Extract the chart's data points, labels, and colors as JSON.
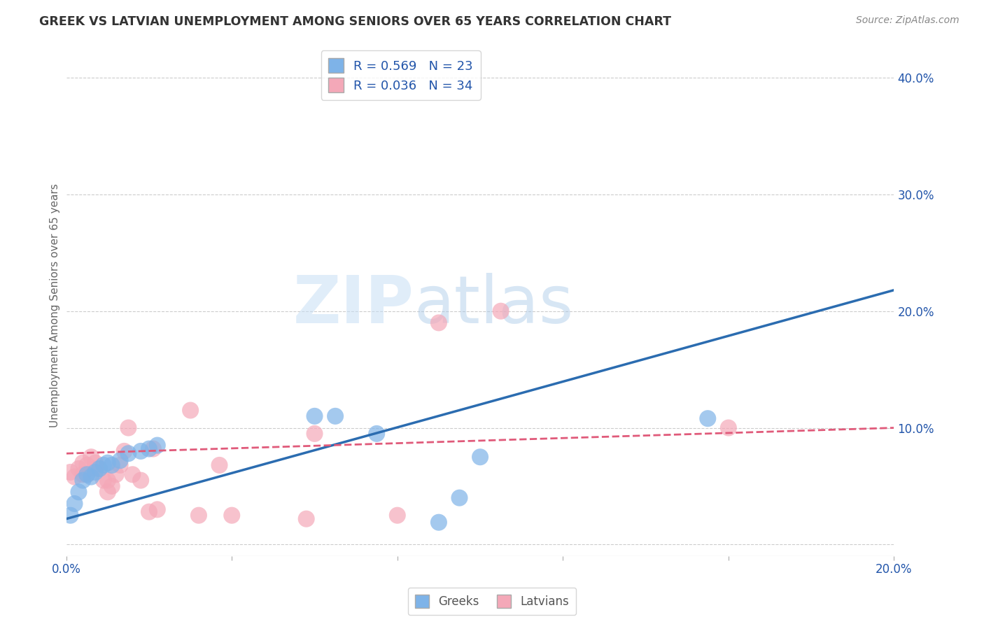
{
  "title": "GREEK VS LATVIAN UNEMPLOYMENT AMONG SENIORS OVER 65 YEARS CORRELATION CHART",
  "source": "Source: ZipAtlas.com",
  "ylabel": "Unemployment Among Seniors over 65 years",
  "x_min": 0.0,
  "x_max": 0.2,
  "y_min": -0.01,
  "y_max": 0.42,
  "x_ticks": [
    0.0,
    0.04,
    0.08,
    0.12,
    0.16,
    0.2
  ],
  "x_tick_labels": [
    "0.0%",
    "",
    "",
    "",
    "",
    "20.0%"
  ],
  "y_ticks": [
    0.0,
    0.1,
    0.2,
    0.3,
    0.4
  ],
  "y_tick_labels_right": [
    "",
    "10.0%",
    "20.0%",
    "30.0%",
    "40.0%"
  ],
  "greeks_R": 0.569,
  "greeks_N": 23,
  "latvians_R": 0.036,
  "latvians_N": 34,
  "greeks_color": "#7EB3E8",
  "latvians_color": "#F4A8B8",
  "greeks_line_color": "#2B6CB0",
  "latvians_line_color": "#E05A7A",
  "watermark_zip": "ZIP",
  "watermark_atlas": "atlas",
  "legend_greeks": "Greeks",
  "legend_latvians": "Latvians",
  "greeks_x": [
    0.001,
    0.002,
    0.003,
    0.004,
    0.005,
    0.006,
    0.007,
    0.008,
    0.009,
    0.01,
    0.011,
    0.013,
    0.015,
    0.018,
    0.02,
    0.022,
    0.06,
    0.065,
    0.075,
    0.09,
    0.095,
    0.1,
    0.155
  ],
  "greeks_y": [
    0.025,
    0.035,
    0.045,
    0.055,
    0.06,
    0.058,
    0.062,
    0.065,
    0.068,
    0.07,
    0.068,
    0.072,
    0.078,
    0.08,
    0.082,
    0.085,
    0.11,
    0.11,
    0.095,
    0.019,
    0.04,
    0.075,
    0.108
  ],
  "latvians_x": [
    0.001,
    0.002,
    0.003,
    0.004,
    0.004,
    0.005,
    0.005,
    0.006,
    0.007,
    0.007,
    0.008,
    0.009,
    0.01,
    0.01,
    0.011,
    0.012,
    0.013,
    0.014,
    0.015,
    0.016,
    0.018,
    0.02,
    0.021,
    0.022,
    0.03,
    0.032,
    0.037,
    0.04,
    0.058,
    0.06,
    0.08,
    0.09,
    0.105,
    0.16
  ],
  "latvians_y": [
    0.062,
    0.058,
    0.065,
    0.06,
    0.07,
    0.068,
    0.06,
    0.075,
    0.07,
    0.065,
    0.065,
    0.055,
    0.055,
    0.045,
    0.05,
    0.06,
    0.068,
    0.08,
    0.1,
    0.06,
    0.055,
    0.028,
    0.082,
    0.03,
    0.115,
    0.025,
    0.068,
    0.025,
    0.022,
    0.095,
    0.025,
    0.19,
    0.2,
    0.1
  ],
  "bg_color": "#FFFFFF",
  "grid_color": "#CCCCCC",
  "greeks_line_x0": 0.0,
  "greeks_line_y0": 0.022,
  "greeks_line_x1": 0.2,
  "greeks_line_y1": 0.218,
  "latvians_line_x0": 0.0,
  "latvians_line_y0": 0.078,
  "latvians_line_x1": 0.2,
  "latvians_line_y1": 0.1
}
